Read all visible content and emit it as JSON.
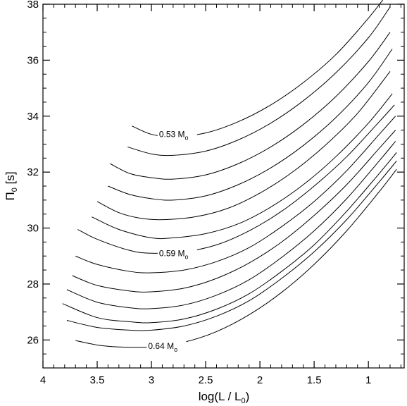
{
  "chart_data": {
    "type": "line",
    "xlabel": "log(L / L",
    "xlabel_sub": "0",
    "xlabel_end": ")",
    "ylabel": "Π",
    "ylabel_sub": "0",
    "ylabel_end": " [s]",
    "xlim": [
      4.0,
      0.67
    ],
    "ylim": [
      25.0,
      38.0
    ],
    "x_reversed": true,
    "x_ticks": [
      4,
      3.5,
      3,
      2.5,
      2,
      1.5,
      1
    ],
    "x_tick_labels": [
      "4",
      "3.5",
      "3",
      "2.5",
      "2",
      "1.5",
      "1"
    ],
    "y_ticks": [
      26,
      28,
      30,
      32,
      34,
      36,
      38
    ],
    "y_tick_labels": [
      "26",
      "28",
      "30",
      "32",
      "34",
      "36",
      "38"
    ],
    "grid": false,
    "line_color": "#000000",
    "series": [
      {
        "x": [
          3.18,
          3.0,
          2.8,
          2.5,
          2.2,
          1.9,
          1.6,
          1.3,
          1.0,
          0.8
        ],
        "y": [
          33.65,
          33.35,
          33.27,
          33.4,
          33.8,
          34.4,
          35.2,
          36.2,
          37.5,
          38.5
        ]
      },
      {
        "x": [
          3.22,
          3.0,
          2.8,
          2.5,
          2.2,
          1.9,
          1.6,
          1.3,
          1.0,
          0.8
        ],
        "y": [
          32.9,
          32.65,
          32.6,
          32.75,
          33.15,
          33.75,
          34.55,
          35.55,
          36.8,
          37.9
        ]
      },
      {
        "x": [
          3.38,
          3.2,
          3.0,
          2.8,
          2.5,
          2.2,
          1.9,
          1.6,
          1.3,
          1.0,
          0.8
        ],
        "y": [
          32.3,
          31.95,
          31.8,
          31.75,
          31.9,
          32.3,
          32.9,
          33.7,
          34.7,
          35.95,
          37.0
        ]
      },
      {
        "x": [
          3.4,
          3.2,
          3.0,
          2.8,
          2.5,
          2.2,
          1.9,
          1.6,
          1.3,
          1.0,
          0.78
        ],
        "y": [
          31.5,
          31.2,
          31.05,
          31.0,
          31.15,
          31.55,
          32.15,
          32.95,
          33.95,
          35.2,
          36.4
        ]
      },
      {
        "x": [
          3.5,
          3.3,
          3.1,
          2.9,
          2.6,
          2.3,
          2.0,
          1.7,
          1.4,
          1.1,
          0.8
        ],
        "y": [
          30.95,
          30.55,
          30.35,
          30.3,
          30.4,
          30.7,
          31.25,
          32.0,
          32.95,
          34.1,
          35.6
        ]
      },
      {
        "x": [
          3.55,
          3.3,
          3.0,
          2.8,
          2.5,
          2.2,
          1.9,
          1.6,
          1.3,
          1.0,
          0.78
        ],
        "y": [
          30.4,
          29.95,
          29.65,
          29.65,
          29.8,
          30.15,
          30.75,
          31.55,
          32.55,
          33.75,
          34.8
        ]
      },
      {
        "x": [
          3.68,
          3.5,
          3.2,
          3.0,
          2.7,
          2.4,
          2.1,
          1.8,
          1.5,
          1.2,
          0.9,
          0.76
        ],
        "y": [
          29.95,
          29.6,
          29.2,
          29.1,
          29.15,
          29.4,
          29.9,
          30.6,
          31.5,
          32.55,
          33.8,
          34.4
        ]
      },
      {
        "x": [
          3.7,
          3.5,
          3.2,
          3.0,
          2.7,
          2.4,
          2.1,
          1.8,
          1.5,
          1.2,
          0.9,
          0.75
        ],
        "y": [
          29.0,
          28.7,
          28.45,
          28.4,
          28.5,
          28.8,
          29.3,
          30.05,
          30.95,
          32.05,
          33.35,
          34.0
        ]
      },
      {
        "x": [
          3.73,
          3.5,
          3.2,
          3.0,
          2.7,
          2.4,
          2.1,
          1.8,
          1.5,
          1.2,
          0.9,
          0.75
        ],
        "y": [
          28.3,
          27.95,
          27.75,
          27.72,
          27.85,
          28.2,
          28.75,
          29.5,
          30.45,
          31.55,
          32.85,
          33.5
        ]
      },
      {
        "x": [
          3.78,
          3.5,
          3.2,
          3.0,
          2.7,
          2.4,
          2.1,
          1.8,
          1.5,
          1.2,
          0.9,
          0.75
        ],
        "y": [
          27.8,
          27.35,
          27.15,
          27.12,
          27.25,
          27.6,
          28.15,
          28.95,
          29.9,
          31.05,
          32.4,
          33.1
        ]
      },
      {
        "x": [
          3.82,
          3.5,
          3.2,
          3.0,
          2.7,
          2.4,
          2.1,
          1.8,
          1.5,
          1.2,
          0.9,
          0.74
        ],
        "y": [
          27.3,
          26.8,
          26.65,
          26.62,
          26.75,
          27.1,
          27.65,
          28.45,
          29.4,
          30.6,
          31.95,
          32.7
        ]
      },
      {
        "x": [
          3.78,
          3.5,
          3.2,
          3.0,
          2.7,
          2.4,
          2.1,
          1.8,
          1.5,
          1.2,
          0.9,
          0.74
        ],
        "y": [
          26.7,
          26.45,
          26.35,
          26.35,
          26.5,
          26.85,
          27.4,
          28.2,
          29.15,
          30.3,
          31.65,
          32.4
        ]
      },
      {
        "x": [
          3.7,
          3.5,
          3.3,
          3.0,
          2.7,
          2.4,
          2.1,
          1.8,
          1.5,
          1.2,
          0.9,
          0.74
        ],
        "y": [
          25.98,
          25.82,
          25.75,
          25.75,
          25.92,
          26.3,
          26.9,
          27.7,
          28.7,
          29.9,
          31.3,
          32.1
        ]
      }
    ],
    "annotations": [
      {
        "text": "0.53 M",
        "sub": "o",
        "x": 2.93,
        "y": 33.35,
        "series": 0
      },
      {
        "text": "0.59 M",
        "sub": "o",
        "x": 2.93,
        "y": 29.1,
        "series": 6
      },
      {
        "text": "0.64 M",
        "sub": "o",
        "x": 3.03,
        "y": 25.78,
        "series": 12
      }
    ]
  }
}
